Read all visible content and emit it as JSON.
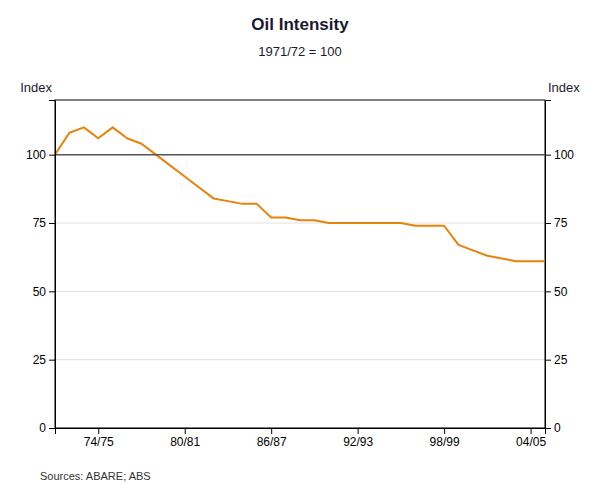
{
  "chart_data": {
    "type": "line",
    "title": "Oil Intensity",
    "subtitle": "1971/72 = 100",
    "y_label": "Index",
    "y2_label": "Index",
    "source": "Sources: ABARE; ABS",
    "color": "#E8820C",
    "x": [
      0,
      1,
      2,
      3,
      4,
      5,
      6,
      7,
      8,
      9,
      10,
      11,
      12,
      13,
      14,
      15,
      16,
      17,
      18,
      19,
      20,
      21,
      22,
      23,
      24,
      25,
      26,
      27,
      28,
      29,
      30,
      31,
      32,
      33,
      34
    ],
    "values": [
      100,
      108,
      110,
      106,
      110,
      106,
      104,
      100,
      96,
      92,
      88,
      84,
      83,
      82,
      82,
      77,
      77,
      76,
      76,
      75,
      75,
      75,
      75,
      75,
      75,
      74,
      74,
      74,
      67,
      65,
      63,
      62,
      61,
      61,
      61
    ],
    "xlim": [
      0,
      34
    ],
    "xticks": [
      {
        "value": 3,
        "label": "74/75"
      },
      {
        "value": 9,
        "label": "80/81"
      },
      {
        "value": 15,
        "label": "86/87"
      },
      {
        "value": 21,
        "label": "92/93"
      },
      {
        "value": 27,
        "label": "98/99"
      },
      {
        "value": 33,
        "label": "04/05"
      }
    ],
    "ylim": [
      0,
      120
    ],
    "yticks": [
      0,
      25,
      50,
      75,
      100
    ],
    "y2lim": [
      0,
      120
    ],
    "y2ticks": [
      0,
      25,
      50,
      75,
      100
    ],
    "reference_line": {
      "value": 100,
      "color": "#555555"
    },
    "grid": "y"
  }
}
